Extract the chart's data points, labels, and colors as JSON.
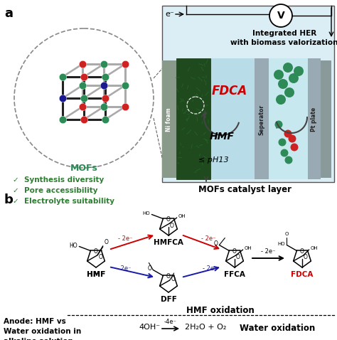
{
  "fig_width": 4.74,
  "fig_height": 4.78,
  "bg_color": "#ffffff",
  "panel_a_label": "a",
  "panel_b_label": "b",
  "mofs_label": "MOFs",
  "checkmarks": [
    "✓  Synthesis diversity",
    "✓  Pore accessibility",
    "✓  Electrolyte suitability"
  ],
  "checkmark_color": "#2e7d32",
  "integrated_her_text": "Integrated HER\nwith biomass valorization",
  "mofs_catalyst_layer": "MOFs catalyst layer",
  "ni_foam_label": "Ni foam",
  "separator_label": "Seperator",
  "pt_plate_label": "Pt plate",
  "fdca_label_a": "FDCA",
  "hmf_label_a": "HMF",
  "ph_label": "≤ pH13",
  "voltmeter": "V",
  "hmfca_label": "HMFCA",
  "dff_label": "DFF",
  "ffca_label": "FFCA",
  "fdca_label_b": "FDCA",
  "minus2e_color": "#cc0000",
  "minus2e_blue": "#1a1aaa",
  "minus2e_text": "- 2e⁻",
  "minus4e_text": "-4e⁻",
  "anode_text": "Anode: HMF vs\nWater oxidation in\nalkaline solution",
  "hmf_oxidation_text": "HMF oxidation",
  "water_oxidation_text": "Water oxidation",
  "rod_color": "#222222",
  "rod_color_light": "#aaaaaa",
  "node_red": "#cc2222",
  "node_green": "#2e8b57",
  "node_blue": "#1a1a8c"
}
